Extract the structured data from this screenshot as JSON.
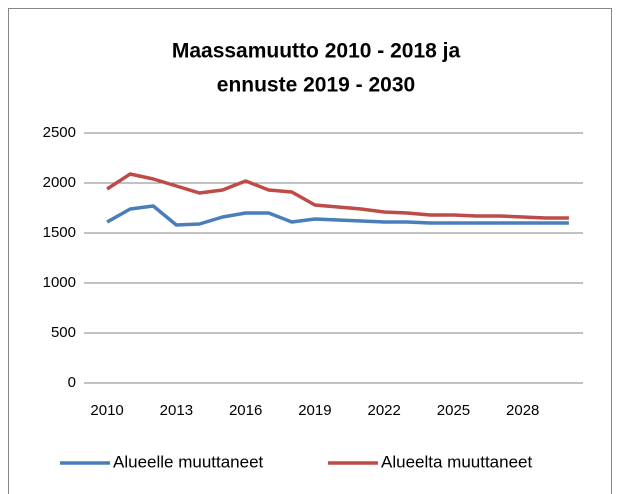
{
  "chart_data": {
    "type": "line",
    "title": [
      "Maassamuutto 2010 - 2018 ja",
      "ennuste 2019 - 2030"
    ],
    "x": [
      2010,
      2011,
      2012,
      2013,
      2014,
      2015,
      2016,
      2017,
      2018,
      2019,
      2020,
      2021,
      2022,
      2023,
      2024,
      2025,
      2026,
      2027,
      2028,
      2029,
      2030
    ],
    "series": [
      {
        "name": "Alueelle muuttaneet",
        "color": "#4a7ebb",
        "values": [
          1610,
          1740,
          1770,
          1580,
          1590,
          1660,
          1700,
          1700,
          1610,
          1640,
          1630,
          1620,
          1610,
          1610,
          1600,
          1600,
          1600,
          1600,
          1600,
          1600,
          1600
        ]
      },
      {
        "name": "Alueelta muuttaneet",
        "color": "#be4b48",
        "values": [
          1940,
          2090,
          2040,
          1970,
          1900,
          1930,
          2020,
          1930,
          1910,
          1780,
          1760,
          1740,
          1710,
          1700,
          1680,
          1680,
          1670,
          1670,
          1660,
          1650,
          1650
        ]
      }
    ],
    "xlim": [
      2009,
      2031
    ],
    "xticks": [
      2010,
      2013,
      2016,
      2019,
      2022,
      2025,
      2028
    ],
    "ylim": [
      0,
      2500
    ],
    "yticks": [
      0,
      500,
      1000,
      1500,
      2000,
      2500
    ],
    "grid": true,
    "legend": "bottom"
  }
}
